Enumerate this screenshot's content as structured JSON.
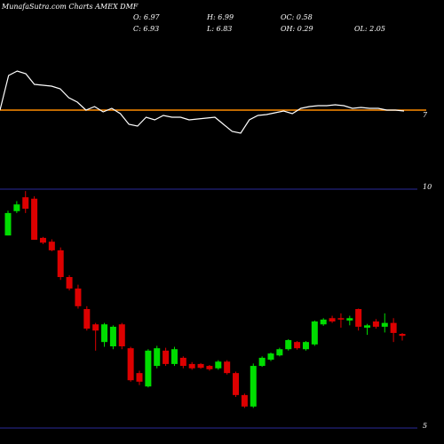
{
  "chart_data": [
    {
      "type": "line",
      "title": "MunafaSutra.com Charts AMEX DMF",
      "stats": [
        {
          "label": "O:",
          "value": 6.97
        },
        {
          "label": "H:",
          "value": 6.99
        },
        {
          "label": "OC:",
          "value": 0.58
        },
        {
          "label": "C:",
          "value": 6.93
        },
        {
          "label": "L:",
          "value": 6.83
        },
        {
          "label": "OH:",
          "value": 0.29
        },
        {
          "label": "OL:",
          "value": 2.05
        }
      ],
      "series": [
        {
          "color": "#ffffff",
          "values": [
            7.0,
            7.78,
            7.88,
            7.82,
            7.58,
            7.56,
            7.54,
            7.48,
            7.28,
            7.18,
            7.0,
            7.08,
            6.96,
            7.04,
            6.92,
            6.68,
            6.64,
            6.84,
            6.78,
            6.88,
            6.84,
            6.84,
            6.78,
            6.8,
            6.82,
            6.84,
            6.68,
            6.52,
            6.48,
            6.78,
            6.88,
            6.9,
            6.94,
            6.98,
            6.92,
            7.04,
            7.08,
            7.1,
            7.1,
            7.12,
            7.1,
            7.04,
            7.06,
            7.04,
            7.04,
            7.0,
            7.0,
            6.98
          ]
        }
      ],
      "level_color": "#ff8c00",
      "ylim": [
        6.2,
        8.2
      ],
      "yticks": [
        7
      ]
    },
    {
      "type": "candlestick",
      "up_color": "#00dd00",
      "down_color": "#dd0000",
      "grid_color": "#2a2a9a",
      "open": [
        9.03,
        9.54,
        9.83,
        9.8,
        8.98,
        8.9,
        8.72,
        8.16,
        7.92,
        7.49,
        7.17,
        6.8,
        6.71,
        7.17,
        6.67,
        6.15,
        5.87,
        6.3,
        6.62,
        6.34,
        6.47,
        6.34,
        6.34,
        6.3,
        6.25,
        6.39,
        6.15,
        5.69,
        5.45,
        6.3,
        6.43,
        6.52,
        6.65,
        6.8,
        6.65,
        6.75,
        7.17,
        7.3,
        7.3,
        7.25,
        7.49,
        7.1,
        7.23,
        7.12,
        7.2,
        6.97
      ],
      "high": [
        9.55,
        9.75,
        9.96,
        9.85,
        9.0,
        8.95,
        8.78,
        8.2,
        8.0,
        7.55,
        7.2,
        7.2,
        7.15,
        7.2,
        6.7,
        6.2,
        6.65,
        6.72,
        6.68,
        6.7,
        6.5,
        6.38,
        6.36,
        6.32,
        6.42,
        6.42,
        6.18,
        5.72,
        6.35,
        6.5,
        6.58,
        6.68,
        6.86,
        6.82,
        6.82,
        7.25,
        7.3,
        7.35,
        7.4,
        7.35,
        7.5,
        7.18,
        7.28,
        7.4,
        7.3,
        6.99
      ],
      "low": [
        9.03,
        9.5,
        9.5,
        8.94,
        8.85,
        8.7,
        8.1,
        7.88,
        7.5,
        7.04,
        6.62,
        6.7,
        6.65,
        6.65,
        5.97,
        5.9,
        5.85,
        6.25,
        6.3,
        6.3,
        6.25,
        6.22,
        6.24,
        6.2,
        6.22,
        6.12,
        5.65,
        5.42,
        5.42,
        6.28,
        6.4,
        6.5,
        6.62,
        6.64,
        6.62,
        6.72,
        7.14,
        7.2,
        7.1,
        7.15,
        7.04,
        6.95,
        7.08,
        7.0,
        6.8,
        6.83
      ],
      "close": [
        9.5,
        9.68,
        9.59,
        8.94,
        8.88,
        8.72,
        8.16,
        7.92,
        7.55,
        7.08,
        7.04,
        7.17,
        7.12,
        6.71,
        6.0,
        5.97,
        6.62,
        6.67,
        6.34,
        6.65,
        6.3,
        6.25,
        6.26,
        6.23,
        6.39,
        6.15,
        5.69,
        5.45,
        6.3,
        6.47,
        6.56,
        6.65,
        6.84,
        6.67,
        6.8,
        7.23,
        7.27,
        7.23,
        7.27,
        7.3,
        7.12,
        7.15,
        7.12,
        7.2,
        6.99,
        6.93
      ],
      "ylim": [
        5,
        10
      ],
      "yticks": [
        5,
        10
      ]
    }
  ]
}
